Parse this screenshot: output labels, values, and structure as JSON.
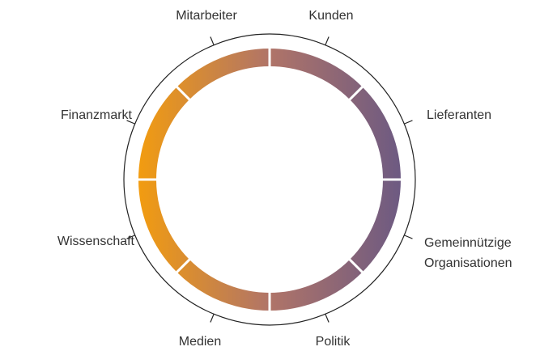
{
  "nodes": [
    {
      "lines": [
        "Kunden"
      ]
    },
    {
      "lines": [
        "Lieferanten"
      ]
    },
    {
      "lines": [
        "Gemeinnützige",
        "Organisationen"
      ]
    },
    {
      "lines": [
        "Politik"
      ]
    },
    {
      "lines": [
        "Medien"
      ]
    },
    {
      "lines": [
        "Wissenschaft"
      ]
    },
    {
      "lines": [
        "Finanzmarkt"
      ]
    },
    {
      "lines": [
        "Mitarbeiter"
      ]
    }
  ]
}
